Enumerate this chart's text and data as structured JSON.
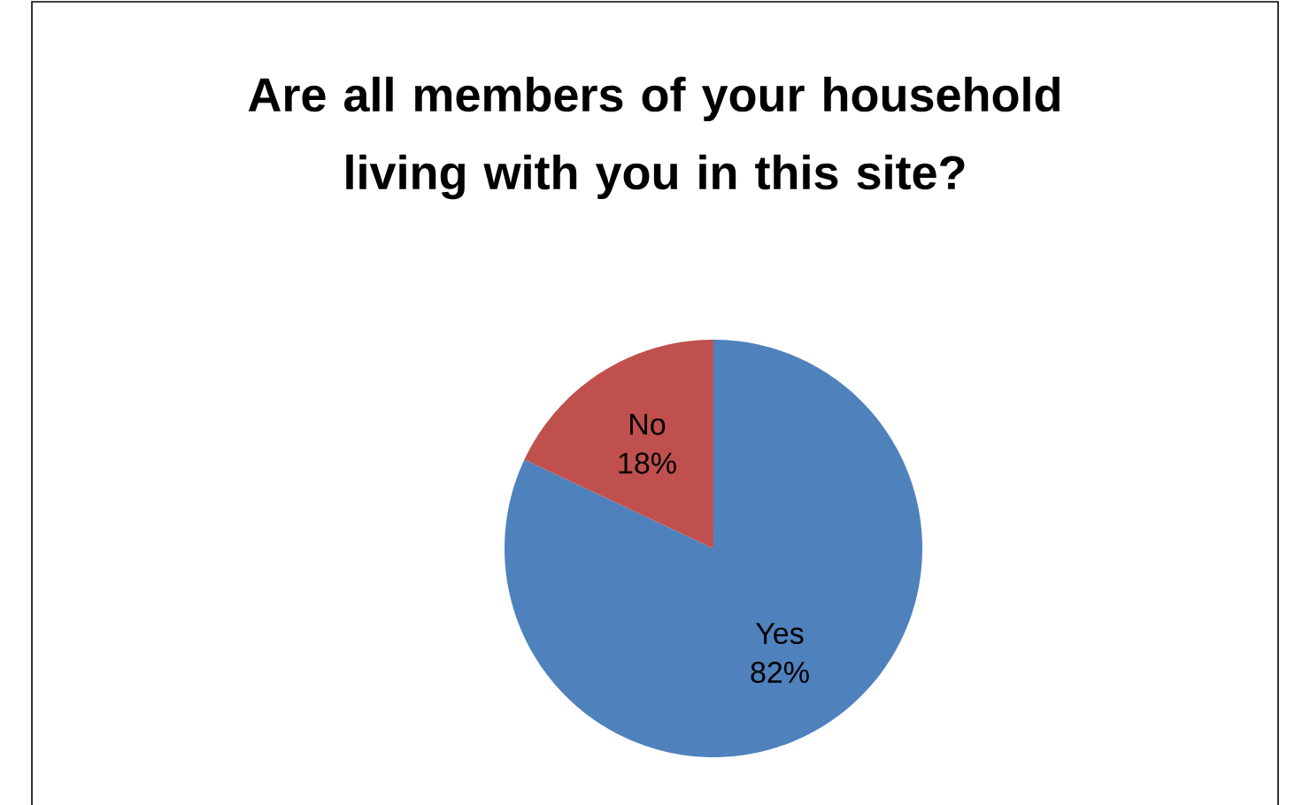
{
  "chart_data": {
    "type": "pie",
    "title": "Are all members of your household living with you in this site?",
    "categories": [
      "Yes",
      "No"
    ],
    "values": [
      82,
      18
    ],
    "colors": [
      "#4f81bd",
      "#c0504d"
    ],
    "value_labels": [
      "82%",
      "18%"
    ]
  }
}
